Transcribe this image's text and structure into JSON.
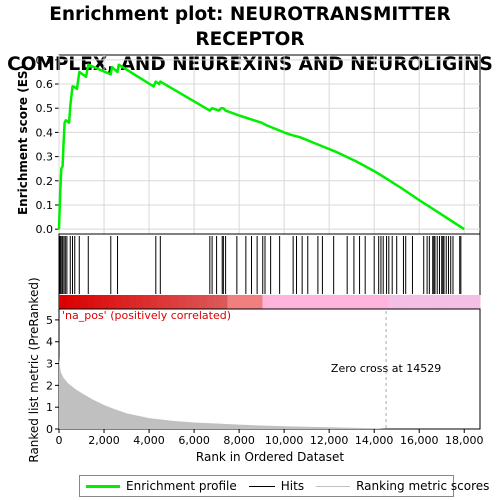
{
  "title_line1": "Enrichment plot: NEUROTRANSMITTER RECEPTOR",
  "title_line2": "COMPLEX, AND NEUREXINS AND NEUROLIGINS",
  "colors": {
    "enrichment": "#00ee00",
    "hits": "#000000",
    "metric_fill": "#c0c0c0",
    "pos_band": "#ee0000",
    "neg_band": "#ffb0e0",
    "zero_line": "#aaaaaa"
  },
  "chart_data": [
    {
      "type": "line",
      "name": "enrichment_profile",
      "ylabel": "Enrichment score (ES)",
      "xlim": [
        0,
        18700
      ],
      "ylim": [
        -0.02,
        0.72
      ],
      "yticks": [
        "0.0",
        "0.1",
        "0.2",
        "0.3",
        "0.4",
        "0.5",
        "0.6",
        "0.7"
      ],
      "x": [
        0,
        50,
        100,
        160,
        200,
        250,
        300,
        450,
        500,
        600,
        650,
        800,
        900,
        1200,
        1300,
        2300,
        2350,
        2600,
        2650,
        4200,
        4300,
        4450,
        4500,
        6700,
        6800,
        7100,
        7200,
        7300,
        7400,
        8000,
        9000,
        9200,
        10000,
        10300,
        10700,
        11500,
        12300,
        13200,
        14000,
        14529,
        15200,
        16000,
        17000,
        18000
      ],
      "y": [
        0.0,
        0.14,
        0.25,
        0.26,
        0.35,
        0.44,
        0.45,
        0.44,
        0.51,
        0.59,
        0.59,
        0.58,
        0.65,
        0.63,
        0.68,
        0.64,
        0.67,
        0.65,
        0.68,
        0.59,
        0.61,
        0.6,
        0.61,
        0.49,
        0.5,
        0.49,
        0.5,
        0.5,
        0.49,
        0.47,
        0.44,
        0.43,
        0.4,
        0.39,
        0.38,
        0.35,
        0.32,
        0.28,
        0.24,
        0.21,
        0.17,
        0.12,
        0.06,
        0.0
      ]
    },
    {
      "type": "scatter",
      "name": "hits",
      "x": [
        30,
        60,
        100,
        160,
        220,
        280,
        350,
        500,
        600,
        700,
        900,
        1300,
        2300,
        2600,
        4300,
        4500,
        6700,
        6800,
        7000,
        7250,
        7300,
        7400,
        7900,
        8300,
        8550,
        8800,
        9050,
        9150,
        9400,
        9800,
        10400,
        10550,
        10800,
        11050,
        11500,
        11700,
        12200,
        12800,
        13100,
        13350,
        13600,
        14000,
        14200,
        14300,
        14400,
        14550,
        14650,
        14800,
        15000,
        15300,
        15400,
        15700,
        16200,
        16350,
        16450,
        16600,
        16650,
        16700,
        16800,
        16900,
        17000,
        17050,
        17100,
        17200,
        17300,
        17400,
        17500,
        17800,
        17850
      ]
    },
    {
      "type": "area",
      "name": "ranking_metric",
      "ylabel": "Ranked list metric (PreRanked)",
      "xlabel": "Rank in Ordered Dataset",
      "ylim": [
        0,
        5.5
      ],
      "yticks": [
        "0",
        "1",
        "2",
        "3",
        "4",
        "5"
      ],
      "xticks": [
        "0",
        "2,000",
        "4,000",
        "6,000",
        "8,000",
        "10,000",
        "12,000",
        "14,000",
        "16,000",
        "18,000"
      ],
      "x": [
        0,
        20,
        80,
        200,
        400,
        700,
        1000,
        1500,
        2000,
        2500,
        3000,
        4000,
        5000,
        6000,
        7000,
        8000,
        9000,
        10000,
        11000,
        12000,
        13000,
        14000,
        14529
      ],
      "y": [
        3.3,
        3.0,
        2.6,
        2.35,
        2.1,
        1.85,
        1.65,
        1.35,
        1.1,
        0.9,
        0.72,
        0.5,
        0.38,
        0.3,
        0.25,
        0.2,
        0.16,
        0.13,
        0.1,
        0.08,
        0.06,
        0.03,
        0.0
      ],
      "pos_label": "'na_pos' (positively correlated)",
      "zero_cross_label": "Zero cross at 14529",
      "zero_cross": 14529
    }
  ],
  "legend": {
    "items": [
      "Enrichment profile",
      "Hits",
      "Ranking metric scores"
    ]
  }
}
